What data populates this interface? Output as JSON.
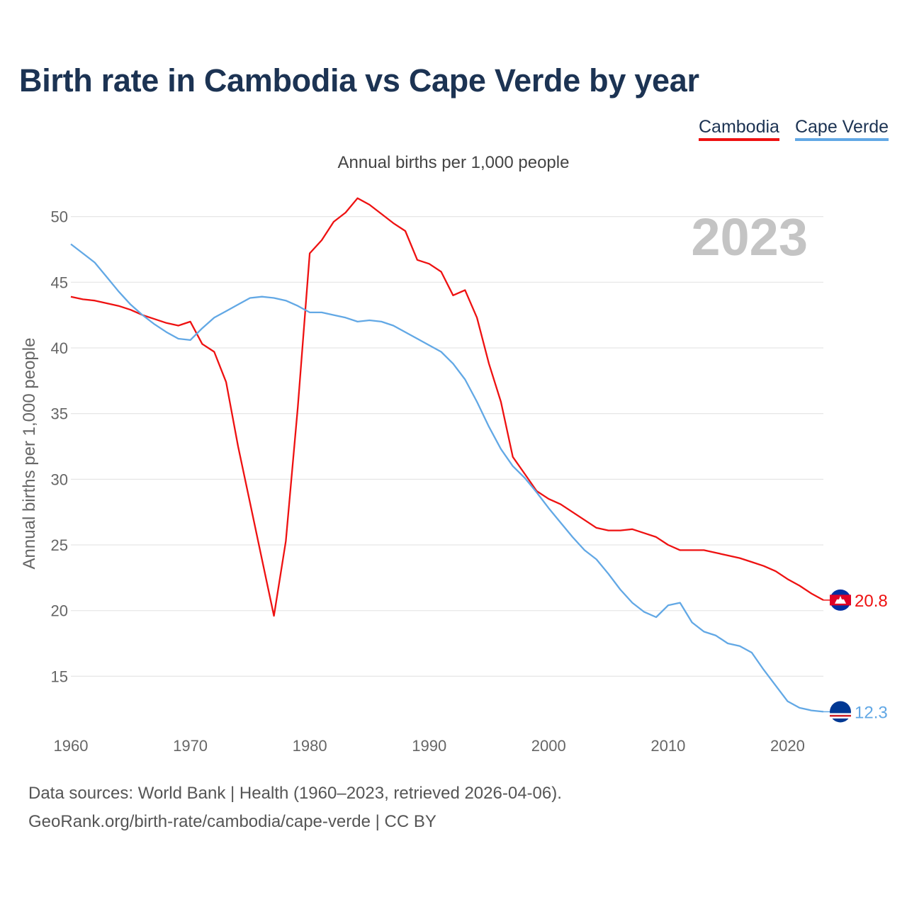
{
  "title": "Birth rate in Cambodia vs Cape Verde by year",
  "subtitle": "Annual births per 1,000 people",
  "legend": {
    "cambodia": "Cambodia",
    "cape_verde": "Cape Verde"
  },
  "footer": {
    "line1": "Data sources: World Bank | Health (1960–2023, retrieved 2026-04-06).",
    "line2": "GeoRank.org/birth-rate/cambodia/cape-verde | CC BY"
  },
  "chart_data": {
    "type": "line",
    "title": "Birth rate in Cambodia vs Cape Verde by year",
    "subtitle": "Annual births per 1,000 people",
    "ylabel": "Annual births per 1,000 people",
    "xlabel": "",
    "year_label": "2023",
    "xlim": [
      1960,
      2023
    ],
    "ylim": [
      12,
      53
    ],
    "yticks": [
      15,
      20,
      25,
      30,
      35,
      40,
      45,
      50
    ],
    "xticks": [
      1960,
      1970,
      1980,
      1990,
      2000,
      2010,
      2020
    ],
    "grid": true,
    "legend_position": "top-right",
    "x": [
      1960,
      1961,
      1962,
      1963,
      1964,
      1965,
      1966,
      1967,
      1968,
      1969,
      1970,
      1971,
      1972,
      1973,
      1974,
      1975,
      1976,
      1977,
      1978,
      1979,
      1980,
      1981,
      1982,
      1983,
      1984,
      1985,
      1986,
      1987,
      1988,
      1989,
      1990,
      1991,
      1992,
      1993,
      1994,
      1995,
      1996,
      1997,
      1998,
      1999,
      2000,
      2001,
      2002,
      2003,
      2004,
      2005,
      2006,
      2007,
      2008,
      2009,
      2010,
      2011,
      2012,
      2013,
      2014,
      2015,
      2016,
      2017,
      2018,
      2019,
      2020,
      2021,
      2022,
      2023
    ],
    "series": [
      {
        "name": "Cambodia",
        "color": "#ee1111",
        "end_label": "20.8",
        "values": [
          43.9,
          43.7,
          43.6,
          43.4,
          43.2,
          42.9,
          42.5,
          42.2,
          41.9,
          41.7,
          42.0,
          40.3,
          39.7,
          37.4,
          32.5,
          28.2,
          23.9,
          19.6,
          25.3,
          35.5,
          47.2,
          48.2,
          49.6,
          50.3,
          51.4,
          50.9,
          50.2,
          49.5,
          48.9,
          46.7,
          46.4,
          45.8,
          44.0,
          44.4,
          42.3,
          38.8,
          35.9,
          31.7,
          30.4,
          29.1,
          28.5,
          28.1,
          27.5,
          26.9,
          26.3,
          26.1,
          26.1,
          26.2,
          25.9,
          25.6,
          25.0,
          24.6,
          24.6,
          24.6,
          24.4,
          24.2,
          24.0,
          23.7,
          23.4,
          23.0,
          22.4,
          21.9,
          21.3,
          20.8
        ]
      },
      {
        "name": "Cape Verde",
        "color": "#62a8e5",
        "end_label": "12.3",
        "values": [
          47.9,
          47.2,
          46.5,
          45.4,
          44.3,
          43.3,
          42.5,
          41.8,
          41.2,
          40.7,
          40.6,
          41.5,
          42.3,
          42.8,
          43.3,
          43.8,
          43.9,
          43.8,
          43.6,
          43.2,
          42.7,
          42.7,
          42.5,
          42.3,
          42.0,
          42.1,
          42.0,
          41.7,
          41.2,
          40.7,
          40.2,
          39.7,
          38.8,
          37.6,
          35.9,
          34.0,
          32.3,
          31.0,
          30.1,
          29.0,
          27.8,
          26.7,
          25.6,
          24.6,
          23.9,
          22.8,
          21.6,
          20.6,
          19.9,
          19.5,
          20.4,
          20.6,
          19.1,
          18.4,
          18.1,
          17.5,
          17.3,
          16.8,
          15.5,
          14.3,
          13.1,
          12.6,
          12.4,
          12.3
        ]
      }
    ]
  }
}
